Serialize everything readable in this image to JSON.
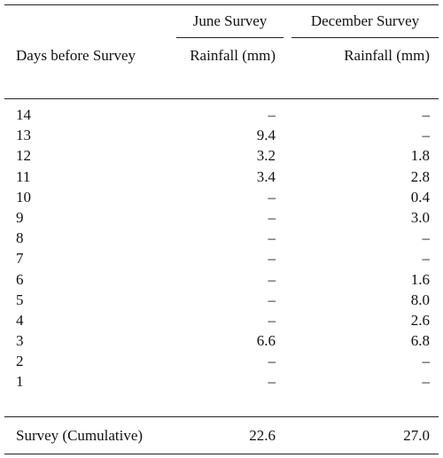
{
  "table": {
    "group_headers": {
      "june": "June Survey",
      "december": "December Survey"
    },
    "column_headers": {
      "days": "Days before Survey",
      "june": "Rainfall (mm)",
      "december": "Rainfall (mm)"
    },
    "rows": [
      {
        "day": "14",
        "june": "–",
        "december": "–"
      },
      {
        "day": "13",
        "june": "9.4",
        "december": "–"
      },
      {
        "day": "12",
        "june": "3.2",
        "december": "1.8"
      },
      {
        "day": "11",
        "june": "3.4",
        "december": "2.8"
      },
      {
        "day": "10",
        "june": "–",
        "december": "0.4"
      },
      {
        "day": "9",
        "june": "–",
        "december": "3.0"
      },
      {
        "day": "8",
        "june": "–",
        "december": "–"
      },
      {
        "day": "7",
        "june": "–",
        "december": "–"
      },
      {
        "day": "6",
        "june": "–",
        "december": "1.6"
      },
      {
        "day": "5",
        "june": "–",
        "december": "8.0"
      },
      {
        "day": "4",
        "june": "–",
        "december": "2.6"
      },
      {
        "day": "3",
        "june": "6.6",
        "december": "6.8"
      },
      {
        "day": "2",
        "june": "–",
        "december": "–"
      },
      {
        "day": "1",
        "june": "–",
        "december": "–"
      }
    ],
    "footer": {
      "label": "Survey (Cumulative)",
      "june": "22.6",
      "december": "27.0"
    }
  }
}
